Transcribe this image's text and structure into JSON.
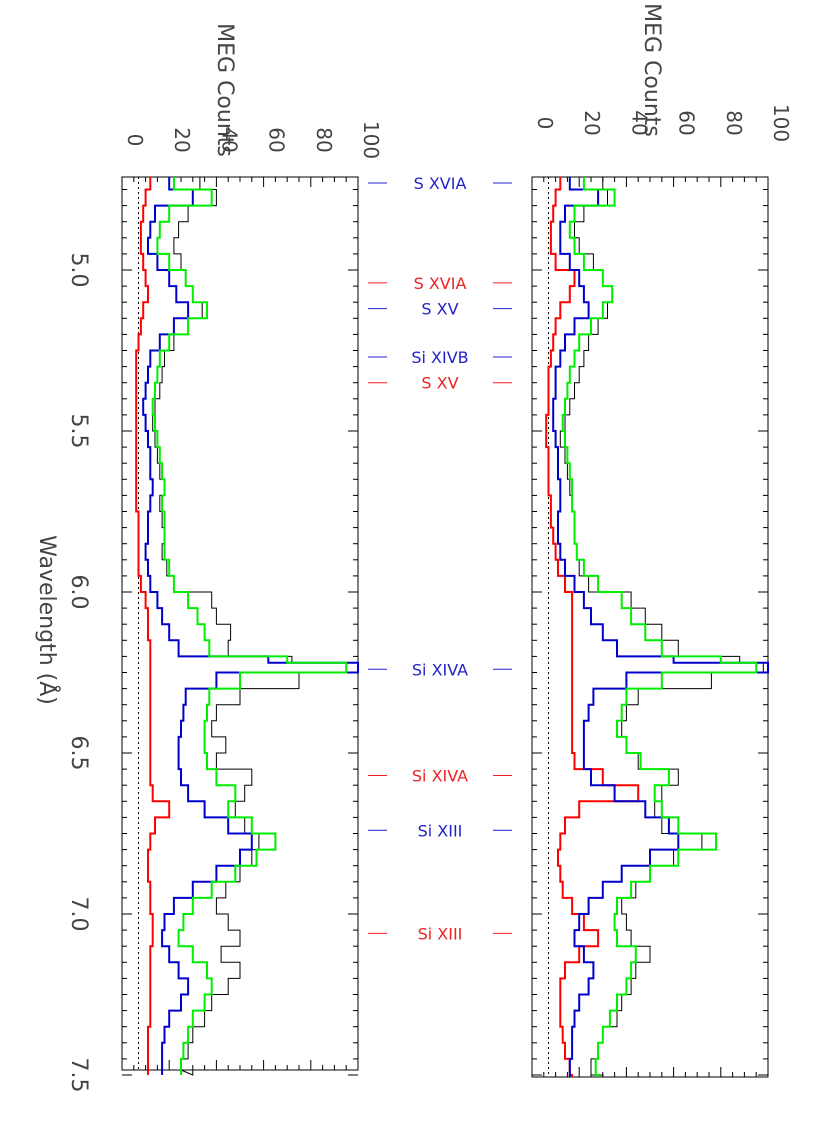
{
  "figure": {
    "xlabel": "Wavelength (Å)",
    "ylabel": "MEG Counts",
    "x_ticks": [
      "5.0",
      "5.5",
      "6.0",
      "6.5",
      "7.0",
      "7.5"
    ],
    "y_ticks": [
      "0",
      "20",
      "40",
      "60",
      "80",
      "100"
    ]
  },
  "colors": {
    "data": "#000000",
    "red_model": "#ff0000",
    "blue_model": "#0000cc",
    "green_model": "#00ee00",
    "blue_label": "#2222cc",
    "red_label": "#ee2222",
    "continuum": "#000000"
  },
  "line_labels": [
    {
      "text": "S XVIA",
      "wavelength": 4.73,
      "color": "blue"
    },
    {
      "text": "S XVIA",
      "wavelength": 5.04,
      "color": "red"
    },
    {
      "text": "S XV",
      "wavelength": 5.12,
      "color": "blue"
    },
    {
      "text": "Si XIVB",
      "wavelength": 5.27,
      "color": "blue"
    },
    {
      "text": "S XV",
      "wavelength": 5.35,
      "color": "red"
    },
    {
      "text": "Si XIVA",
      "wavelength": 6.24,
      "color": "blue"
    },
    {
      "text": "Si XIVA",
      "wavelength": 6.57,
      "color": "red"
    },
    {
      "text": "Si XIII",
      "wavelength": 6.74,
      "color": "blue"
    },
    {
      "text": "Si XIII",
      "wavelength": 7.06,
      "color": "red"
    }
  ],
  "chart_data": [
    {
      "type": "line",
      "panel": "left",
      "xlabel": "Wavelength (Å)",
      "ylabel": "MEG Counts",
      "xlim": [
        4.8,
        7.5
      ],
      "ylim": [
        0,
        100
      ],
      "continuum_level": 7,
      "x": [
        4.7,
        4.75,
        4.8,
        4.85,
        4.9,
        4.95,
        5.0,
        5.05,
        5.1,
        5.15,
        5.2,
        5.25,
        5.3,
        5.35,
        5.4,
        5.45,
        5.5,
        5.55,
        5.6,
        5.65,
        5.7,
        5.75,
        5.8,
        5.85,
        5.9,
        5.95,
        6.0,
        6.05,
        6.1,
        6.15,
        6.2,
        6.22,
        6.25,
        6.3,
        6.35,
        6.4,
        6.45,
        6.5,
        6.55,
        6.6,
        6.65,
        6.7,
        6.75,
        6.8,
        6.85,
        6.9,
        6.95,
        7.0,
        7.05,
        7.1,
        7.15,
        7.2,
        7.25,
        7.3,
        7.35,
        7.4,
        7.45,
        7.5
      ],
      "series": [
        {
          "color": "black",
          "values": [
            33,
            40,
            28,
            24,
            22,
            25,
            27,
            30,
            34,
            28,
            22,
            18,
            17,
            16,
            14,
            13,
            14,
            15,
            16,
            18,
            16,
            17,
            18,
            17,
            19,
            22,
            38,
            40,
            46,
            45,
            72,
            95,
            75,
            50,
            40,
            38,
            44,
            40,
            55,
            52,
            48,
            52,
            58,
            55,
            50,
            44,
            40,
            45,
            50,
            42,
            50,
            45,
            38,
            35,
            30,
            28,
            25,
            30
          ]
        },
        {
          "color": "red",
          "values": [
            12,
            10,
            9,
            8,
            8,
            9,
            10,
            11,
            9,
            8,
            7,
            6,
            6,
            6,
            6,
            6,
            6,
            6,
            6,
            6,
            6,
            7,
            7,
            7,
            7,
            8,
            10,
            11,
            11,
            12,
            12,
            12,
            12,
            12,
            12,
            12,
            12,
            12,
            12,
            13,
            20,
            14,
            12,
            11,
            11,
            12,
            12,
            13,
            13,
            12,
            12,
            12,
            12,
            12,
            11,
            11,
            11,
            11
          ]
        },
        {
          "color": "blue",
          "values": [
            20,
            30,
            14,
            12,
            11,
            15,
            20,
            23,
            28,
            22,
            16,
            12,
            11,
            10,
            9,
            10,
            11,
            12,
            12,
            13,
            12,
            11,
            11,
            10,
            11,
            12,
            15,
            17,
            20,
            24,
            62,
            100,
            40,
            27,
            26,
            25,
            24,
            24,
            25,
            28,
            35,
            45,
            55,
            50,
            40,
            30,
            22,
            18,
            17,
            20,
            24,
            28,
            25,
            20,
            18,
            17,
            17,
            17
          ]
        },
        {
          "color": "green",
          "values": [
            22,
            38,
            20,
            16,
            15,
            20,
            27,
            30,
            36,
            28,
            20,
            16,
            15,
            14,
            13,
            14,
            15,
            16,
            17,
            18,
            17,
            18,
            18,
            18,
            20,
            22,
            28,
            32,
            35,
            37,
            70,
            95,
            50,
            37,
            36,
            35,
            35,
            36,
            40,
            48,
            45,
            55,
            65,
            57,
            48,
            38,
            30,
            26,
            24,
            30,
            36,
            38,
            35,
            30,
            28,
            26,
            25,
            25
          ]
        }
      ]
    },
    {
      "type": "line",
      "panel": "right",
      "xlabel": "",
      "ylabel": "MEG Counts",
      "xlim": [
        4.8,
        7.5
      ],
      "ylim": [
        0,
        100
      ],
      "continuum_level": 7,
      "x": [
        4.7,
        4.75,
        4.8,
        4.85,
        4.9,
        4.95,
        5.0,
        5.05,
        5.1,
        5.15,
        5.2,
        5.25,
        5.3,
        5.35,
        5.4,
        5.45,
        5.5,
        5.55,
        5.6,
        5.65,
        5.7,
        5.75,
        5.8,
        5.85,
        5.9,
        5.95,
        6.0,
        6.05,
        6.1,
        6.15,
        6.2,
        6.22,
        6.25,
        6.3,
        6.35,
        6.4,
        6.45,
        6.5,
        6.55,
        6.6,
        6.65,
        6.7,
        6.75,
        6.8,
        6.85,
        6.9,
        6.95,
        7.0,
        7.05,
        7.1,
        7.15,
        7.2,
        7.25,
        7.3,
        7.35,
        7.4,
        7.45,
        7.5
      ],
      "series": [
        {
          "color": "black",
          "values": [
            30,
            32,
            22,
            18,
            20,
            26,
            30,
            34,
            32,
            28,
            24,
            22,
            20,
            18,
            16,
            14,
            12,
            14,
            15,
            16,
            17,
            18,
            18,
            19,
            20,
            24,
            42,
            48,
            55,
            62,
            88,
            98,
            76,
            45,
            40,
            38,
            40,
            45,
            62,
            55,
            52,
            55,
            72,
            60,
            50,
            44,
            38,
            40,
            42,
            50,
            44,
            42,
            38,
            36,
            30,
            28,
            25,
            30
          ]
        },
        {
          "color": "red",
          "values": [
            12,
            10,
            9,
            8,
            8,
            10,
            18,
            16,
            12,
            10,
            9,
            8,
            7,
            7,
            7,
            6,
            6,
            7,
            7,
            7,
            8,
            8,
            9,
            10,
            11,
            14,
            17,
            17,
            17,
            17,
            17,
            17,
            17,
            17,
            17,
            17,
            17,
            18,
            30,
            45,
            20,
            14,
            12,
            11,
            12,
            13,
            17,
            22,
            28,
            20,
            14,
            12,
            12,
            12,
            13,
            14,
            16,
            17
          ]
        },
        {
          "color": "blue",
          "values": [
            16,
            28,
            14,
            12,
            12,
            16,
            20,
            22,
            24,
            18,
            14,
            12,
            10,
            10,
            9,
            9,
            10,
            11,
            11,
            12,
            12,
            11,
            11,
            12,
            14,
            18,
            22,
            25,
            30,
            36,
            60,
            100,
            40,
            26,
            24,
            22,
            22,
            22,
            25,
            35,
            48,
            58,
            62,
            50,
            38,
            30,
            24,
            20,
            18,
            22,
            26,
            24,
            20,
            18,
            17,
            17,
            16,
            16
          ]
        },
        {
          "color": "green",
          "values": [
            22,
            35,
            18,
            16,
            18,
            22,
            30,
            34,
            30,
            25,
            20,
            18,
            16,
            15,
            14,
            13,
            14,
            15,
            16,
            17,
            17,
            18,
            18,
            19,
            22,
            28,
            38,
            42,
            48,
            55,
            80,
            95,
            55,
            40,
            38,
            36,
            40,
            46,
            58,
            52,
            55,
            62,
            78,
            62,
            50,
            42,
            36,
            35,
            36,
            44,
            42,
            40,
            36,
            33,
            30,
            28,
            27,
            28
          ]
        }
      ]
    }
  ]
}
